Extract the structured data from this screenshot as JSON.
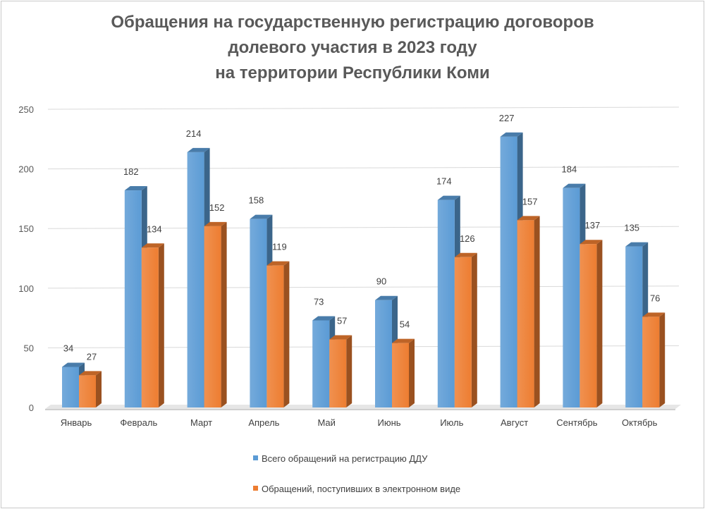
{
  "chart_data": {
    "type": "bar",
    "title": [
      "Обращения на государственную регистрацию договоров",
      "долевого участия в 2023 году",
      "на территории Республики Коми"
    ],
    "categories": [
      "Январь",
      "Февраль",
      "Март",
      "Апрель",
      "Май",
      "Июнь",
      "Июль",
      "Август",
      "Сентябрь",
      "Октябрь"
    ],
    "series": [
      {
        "name": "Всего обращений на регистрацию ДДУ",
        "values": [
          34,
          182,
          214,
          158,
          73,
          90,
          174,
          227,
          184,
          135
        ],
        "color": "#5b9bd5"
      },
      {
        "name": "Обращений, поступивших в электронном виде",
        "values": [
          27,
          134,
          152,
          119,
          57,
          54,
          126,
          157,
          137,
          76
        ],
        "color": "#ed7d31"
      }
    ],
    "y_ticks": [
      0,
      50,
      100,
      150,
      200,
      250
    ],
    "ylim": [
      0,
      250
    ],
    "grid": true,
    "legend_position": "bottom",
    "data_labels": true,
    "style": "3d-clustered-column"
  }
}
